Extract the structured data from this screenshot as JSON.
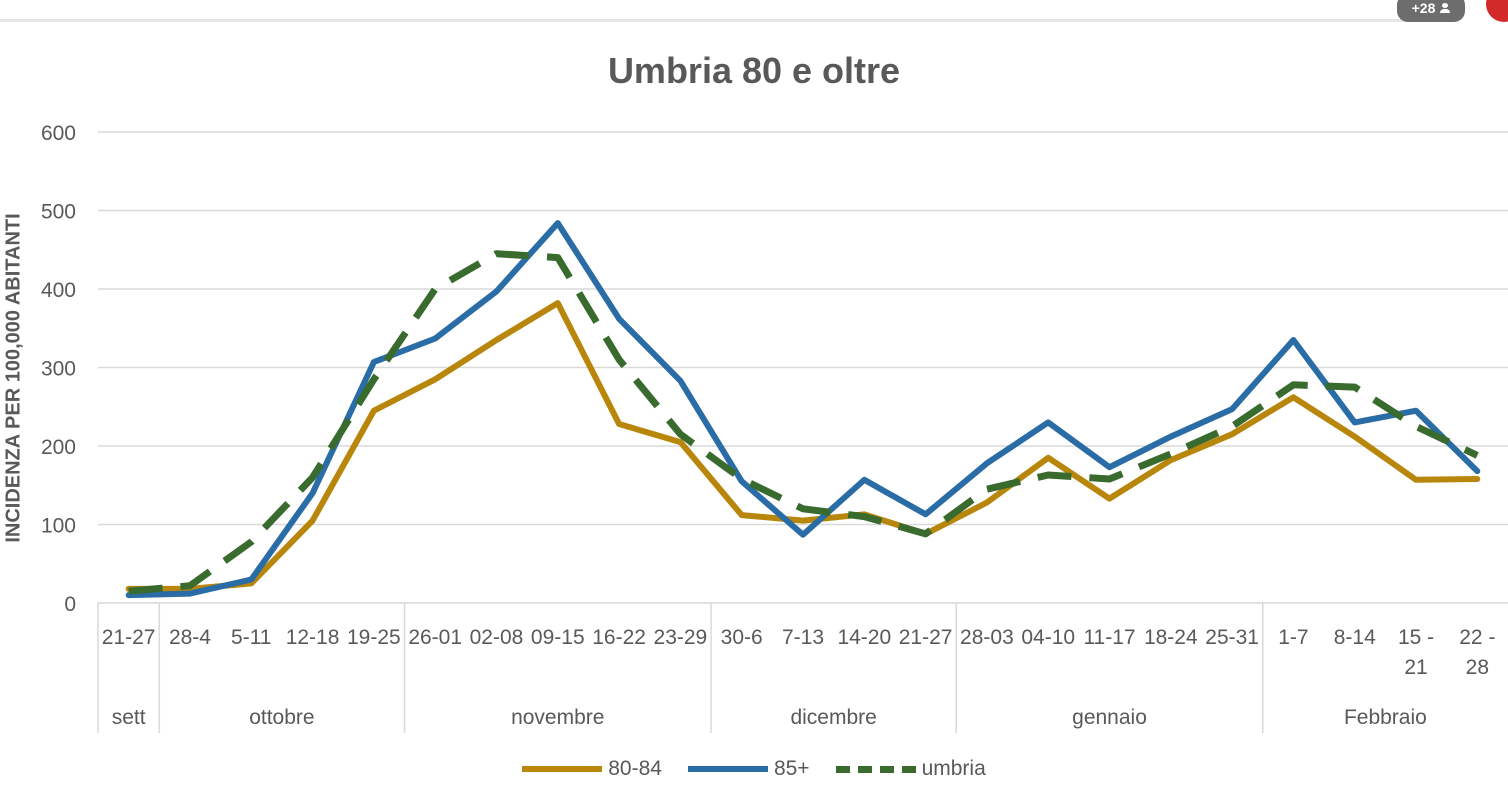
{
  "overlay": {
    "participants_badge": "+28"
  },
  "chart_data": {
    "type": "line",
    "title": "Umbria 80 e oltre",
    "ylabel": "INCIDENZA PER 100,000 ABITANTI",
    "xlabel": "",
    "ylim": [
      0,
      600
    ],
    "yticks": [
      0,
      100,
      200,
      300,
      400,
      500,
      600
    ],
    "grid": true,
    "legend_position": "bottom",
    "categories": [
      "21-27",
      "28-4",
      "5-11",
      "12-18",
      "19-25",
      "26-01",
      "02-08",
      "09-15",
      "16-22",
      "23-29",
      "30-6",
      "7-13",
      "14-20",
      "21-27",
      "28-03",
      "04-10",
      "11-17",
      "18-24",
      "25-31",
      "1-7",
      "8-14",
      "15 - 21",
      "22 - 28"
    ],
    "month_groups": [
      {
        "label": "sett",
        "span": 1
      },
      {
        "label": "ottobre",
        "span": 4
      },
      {
        "label": "novembre",
        "span": 5
      },
      {
        "label": "dicembre",
        "span": 4
      },
      {
        "label": "gennaio",
        "span": 5
      },
      {
        "label": "Febbraio",
        "span": 4
      }
    ],
    "series": [
      {
        "name": "80-84",
        "color": "#b8860b",
        "style": "solid",
        "values": [
          18,
          18,
          25,
          105,
          245,
          285,
          335,
          382,
          228,
          205,
          112,
          105,
          113,
          88,
          128,
          185,
          133,
          182,
          215,
          262,
          212,
          157,
          158
        ]
      },
      {
        "name": "85+",
        "color": "#2a6ca6",
        "style": "solid",
        "values": [
          10,
          12,
          30,
          140,
          307,
          337,
          397,
          484,
          362,
          283,
          155,
          87,
          157,
          113,
          178,
          230,
          173,
          212,
          247,
          335,
          230,
          245,
          168
        ]
      },
      {
        "name": "umbria",
        "color": "#3a6b2e",
        "style": "dashed",
        "values": [
          15,
          22,
          78,
          160,
          285,
          400,
          445,
          440,
          310,
          215,
          158,
          120,
          110,
          88,
          145,
          163,
          158,
          190,
          225,
          278,
          275,
          225,
          188
        ]
      }
    ]
  }
}
